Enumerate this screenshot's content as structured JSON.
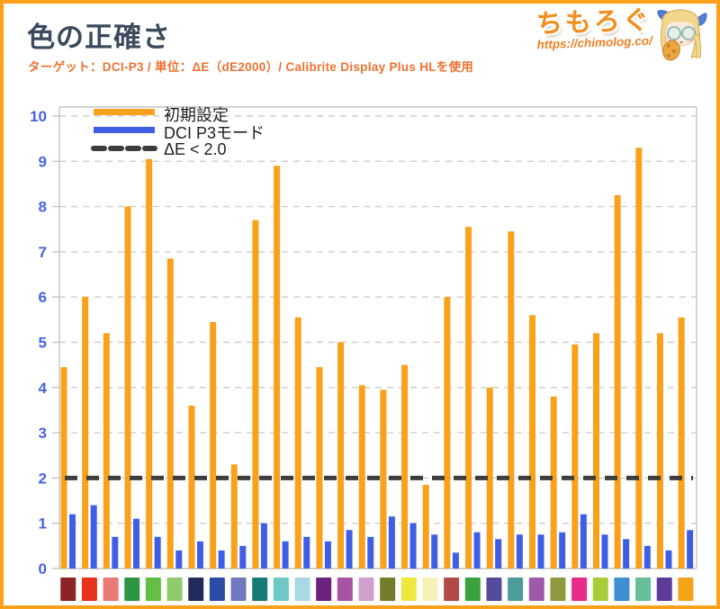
{
  "header": {
    "title": "色の正確さ",
    "subtitle": "ターゲット：DCI-P3 / 単位：ΔE（dE2000）/ Calibrite Display Plus HLを使用",
    "logo_text": "ちもろぐ",
    "logo_url": "https://chimolog.co/"
  },
  "chart_data": {
    "type": "bar",
    "title": "色の正確さ",
    "xlabel": "",
    "ylabel": "",
    "ylim": [
      0,
      10
    ],
    "yticks": [
      0,
      1,
      2,
      3,
      4,
      5,
      6,
      7,
      8,
      9,
      10
    ],
    "grid": true,
    "legend_position": "top-left",
    "threshold": {
      "label": "ΔE < 2.0",
      "value": 2.0,
      "color": "#3D3D3D"
    },
    "axis_label_color": "#4463E0",
    "grid_color": "#CDCDCD",
    "axis_color": "#C4C4C4",
    "categories": [
      "patch-1",
      "patch-2",
      "patch-3",
      "patch-4",
      "patch-5",
      "patch-6",
      "patch-7",
      "patch-8",
      "patch-9",
      "patch-10",
      "patch-11",
      "patch-12",
      "patch-13",
      "patch-14",
      "patch-15",
      "patch-16",
      "patch-17",
      "patch-18",
      "patch-19",
      "patch-20",
      "patch-21",
      "patch-22",
      "patch-23",
      "patch-24",
      "patch-25",
      "patch-26",
      "patch-27",
      "patch-28",
      "patch-29",
      "patch-30"
    ],
    "category_colors": [
      "#8B2423",
      "#E8321E",
      "#E97975",
      "#2E9642",
      "#63BE44",
      "#8FCB6B",
      "#232A5C",
      "#2B4BA5",
      "#7178BE",
      "#177B78",
      "#6EC9C4",
      "#A8D8E4",
      "#6B2180",
      "#A852A5",
      "#D09FCD",
      "#757D2A",
      "#EDE93F",
      "#F4F2B5",
      "#B04A47",
      "#38A23C",
      "#544A9E",
      "#4C9D9A",
      "#9C5AA8",
      "#8E9A40",
      "#E72D87",
      "#A6CC3A",
      "#3F8FD2",
      "#67BE99",
      "#5D3C99",
      "#F5A31B"
    ],
    "series": [
      {
        "name": "初期設定",
        "color": "#F9A11B",
        "values": [
          4.45,
          6.0,
          5.2,
          8.0,
          9.05,
          6.85,
          3.6,
          5.45,
          2.3,
          7.7,
          8.9,
          5.55,
          4.45,
          5.0,
          4.05,
          3.95,
          4.5,
          1.85,
          6.0,
          7.55,
          4.0,
          7.45,
          5.6,
          3.8,
          4.95,
          5.2,
          8.25,
          9.3,
          5.2,
          5.55
        ]
      },
      {
        "name": "DCI P3モード",
        "color": "#3E5FE5",
        "values": [
          1.2,
          1.4,
          0.7,
          1.1,
          0.7,
          0.4,
          0.6,
          0.4,
          0.5,
          1.0,
          0.6,
          0.7,
          0.6,
          0.85,
          0.7,
          1.15,
          1.0,
          0.75,
          0.35,
          0.8,
          0.65,
          0.75,
          0.75,
          0.8,
          1.2,
          0.75,
          0.65,
          0.5,
          0.4,
          0.85
        ]
      }
    ]
  }
}
